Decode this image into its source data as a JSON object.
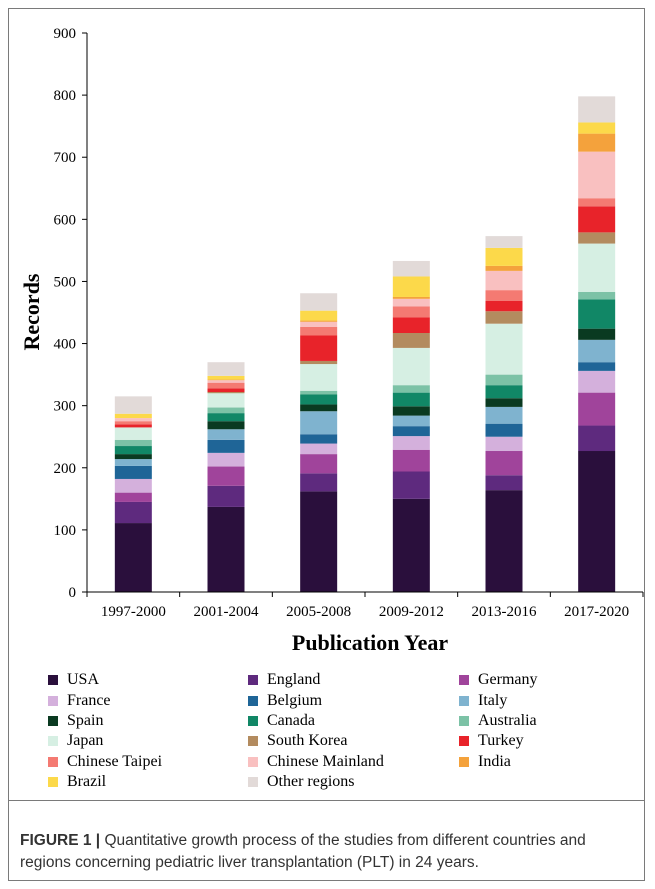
{
  "chart_data": {
    "type": "bar",
    "stacked": true,
    "xlabel": "Publication Year",
    "ylabel": "Records",
    "ylim": [
      0,
      900
    ],
    "yticks": [
      0,
      100,
      200,
      300,
      400,
      500,
      600,
      700,
      800,
      900
    ],
    "grid": false,
    "legend_position": "bottom",
    "categories": [
      "1997-2000",
      "2001-2004",
      "2005-2008",
      "2009-2012",
      "2013-2016",
      "2017-2020"
    ],
    "series": [
      {
        "name": "USA",
        "color": "#2a0f3c",
        "values": [
          111,
          137,
          162,
          150,
          164,
          227
        ]
      },
      {
        "name": "England",
        "color": "#5e2a7e",
        "values": [
          34,
          34,
          29,
          44,
          24,
          41
        ]
      },
      {
        "name": "Germany",
        "color": "#a0449b",
        "values": [
          15,
          31,
          31,
          35,
          39,
          53
        ]
      },
      {
        "name": "France",
        "color": "#d4b0dc",
        "values": [
          22,
          22,
          17,
          22,
          23,
          35
        ]
      },
      {
        "name": "Belgium",
        "color": "#1f6597",
        "values": [
          21,
          21,
          15,
          16,
          21,
          14
        ]
      },
      {
        "name": "Italy",
        "color": "#7fb3cf",
        "values": [
          11,
          17,
          37,
          17,
          27,
          36
        ]
      },
      {
        "name": "Spain",
        "color": "#0a3a21",
        "values": [
          8,
          13,
          11,
          15,
          14,
          18
        ]
      },
      {
        "name": "Canada",
        "color": "#118766",
        "values": [
          13,
          13,
          16,
          22,
          21,
          47
        ]
      },
      {
        "name": "Australia",
        "color": "#7cc2a6",
        "values": [
          10,
          9,
          6,
          12,
          17,
          12
        ]
      },
      {
        "name": "Japan",
        "color": "#d6efe3",
        "values": [
          20,
          23,
          43,
          60,
          82,
          78
        ]
      },
      {
        "name": "South Korea",
        "color": "#b38b5f",
        "values": [
          0,
          2,
          5,
          24,
          20,
          18
        ]
      },
      {
        "name": "Turkey",
        "color": "#e8232a",
        "values": [
          5,
          6,
          41,
          25,
          17,
          42
        ]
      },
      {
        "name": "Chinese Taipei",
        "color": "#f47a72",
        "values": [
          5,
          9,
          14,
          18,
          17,
          13
        ]
      },
      {
        "name": "Chinese Mainland",
        "color": "#f9c0c0",
        "values": [
          5,
          4,
          8,
          12,
          31,
          75
        ]
      },
      {
        "name": "India",
        "color": "#f4a23c",
        "values": [
          0,
          1,
          2,
          3,
          8,
          29
        ]
      },
      {
        "name": "Brazil",
        "color": "#fcd94a",
        "values": [
          7,
          6,
          16,
          33,
          29,
          18
        ]
      },
      {
        "name": "Other regions",
        "color": "#e2dad8",
        "values": [
          28,
          22,
          28,
          25,
          19,
          42
        ]
      }
    ]
  },
  "caption": {
    "label": "FIGURE 1 |",
    "text": " Quantitative growth process of the studies from different countries and regions concerning pediatric liver transplantation (PLT) in 24 years."
  }
}
